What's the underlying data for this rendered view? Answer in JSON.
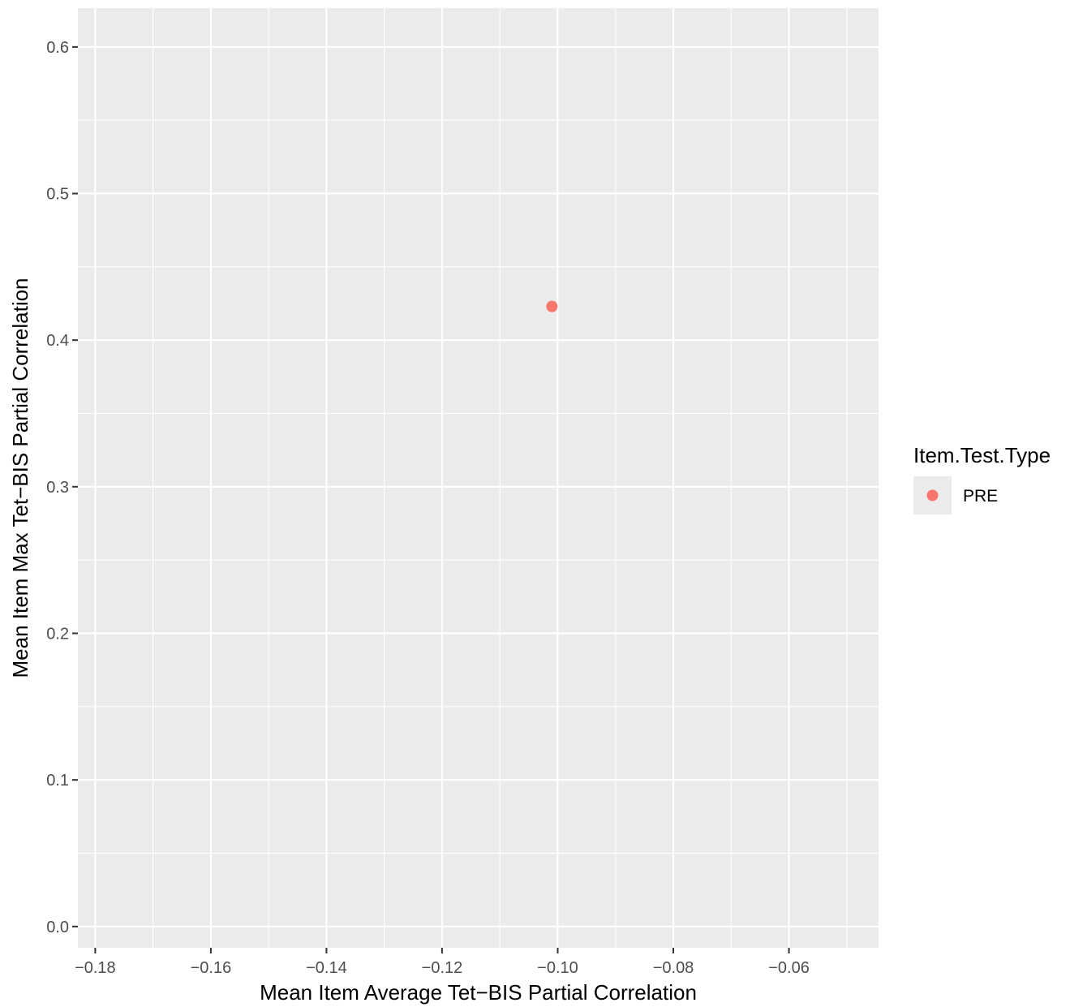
{
  "chart_data": {
    "type": "scatter",
    "title": "",
    "xlabel": "Mean Item Average Tet−BIS Partial Correlation",
    "ylabel": "Mean Item Max Tet−BIS Partial Correlation",
    "xlim": [
      -0.183,
      -0.0445
    ],
    "ylim": [
      -0.0145,
      0.6265
    ],
    "x_ticks": [
      -0.18,
      -0.16,
      -0.14,
      -0.12,
      -0.1,
      -0.08,
      -0.06
    ],
    "x_tick_labels": [
      "−0.18",
      "−0.16",
      "−0.14",
      "−0.12",
      "−0.10",
      "−0.08",
      "−0.06"
    ],
    "y_ticks": [
      0.0,
      0.1,
      0.2,
      0.3,
      0.4,
      0.5,
      0.6
    ],
    "y_tick_labels": [
      "0.0",
      "0.1",
      "0.2",
      "0.3",
      "0.4",
      "0.5",
      "0.6"
    ],
    "grid": true,
    "legend": {
      "title": "Item.Test.Type",
      "position": "right",
      "entries": [
        {
          "label": "PRE",
          "color": "#F8766D"
        }
      ]
    },
    "series": [
      {
        "name": "PRE",
        "color": "#F8766D",
        "points": [
          {
            "x": -0.101,
            "y": 0.423
          }
        ]
      }
    ]
  },
  "colors": {
    "panel_background": "#EBEBEB",
    "grid_line": "#FFFFFF",
    "tick_mark": "#333333",
    "tick_text": "#4D4D4D"
  }
}
